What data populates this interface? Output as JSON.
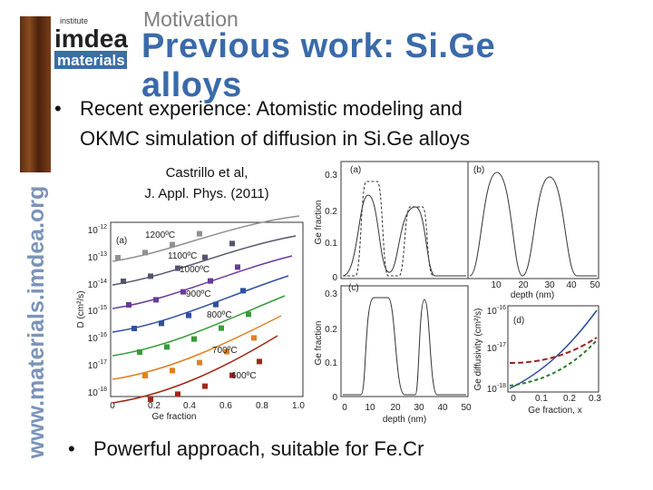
{
  "header": {
    "section": "Motivation",
    "title": "Previous work: Si.Ge alloys"
  },
  "logo": {
    "line1": "institute",
    "line2": "imdea",
    "line3": "materials",
    "url": "www.materials.imdea.org"
  },
  "bullets": [
    "Recent experience: Atomistic modeling and",
    "OKMC simulation of diffusion in Si.Ge alloys",
    "Powerful approach, suitable for Fe.Cr"
  ],
  "citation": [
    "Castrillo et al,",
    "J. Appl. Phys. (2011)"
  ],
  "figure_left": {
    "panel": "(a)",
    "x_label": "Ge fraction",
    "y_label": "D (cm²/s)",
    "xticks": [
      "0",
      "0.2",
      "0.4",
      "0.6",
      "0.8",
      "1.0"
    ],
    "yticks": [
      {
        "base": "10",
        "exp": "-12"
      },
      {
        "base": "10",
        "exp": "-13"
      },
      {
        "base": "10",
        "exp": "-14"
      },
      {
        "base": "10",
        "exp": "-15"
      },
      {
        "base": "10",
        "exp": "-16"
      },
      {
        "base": "10",
        "exp": "-17"
      },
      {
        "base": "10",
        "exp": "-18"
      }
    ],
    "temperatures": [
      "1200ºC",
      "1100ºC",
      "1000ºC",
      "900ºC",
      "800ºC",
      "700ºC",
      "600ºC"
    ]
  },
  "figure_right": {
    "panel_a": {
      "label": "(a)",
      "y_label": "Ge fraction",
      "yticks": [
        "0.3",
        "0.2",
        "0.1",
        "0"
      ]
    },
    "panel_b": {
      "label": "(b)",
      "x_label": "depth (nm)",
      "xticks": [
        "10",
        "20",
        "30",
        "40",
        "50"
      ]
    },
    "panel_c": {
      "label": "(c)",
      "y_label": "Ge fraction",
      "x_label": "depth (nm)",
      "yticks": [
        "0.3",
        "0.2",
        "0.1",
        "0"
      ],
      "xticks": [
        "0",
        "10",
        "20",
        "30",
        "40",
        "50"
      ]
    },
    "panel_d": {
      "label": "(d)",
      "y_label": "Ge diffusivity (cm²/s)",
      "x_label": "Ge fraction, x",
      "yticks": [
        {
          "base": "10",
          "exp": "-16"
        },
        {
          "base": "10",
          "exp": "-17"
        },
        {
          "base": "10",
          "exp": "-18"
        }
      ],
      "xticks": [
        "0",
        "0.1",
        "0.2",
        "0.3"
      ]
    }
  }
}
